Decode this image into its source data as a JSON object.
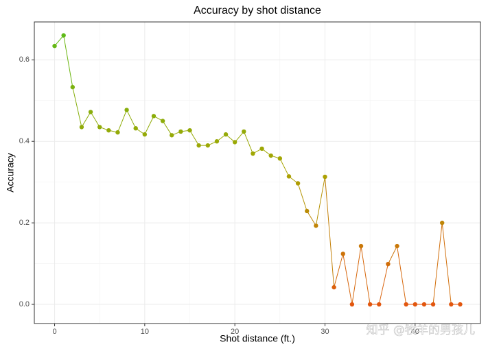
{
  "chart_data": {
    "type": "line",
    "title": "Accuracy by shot distance",
    "xlabel": "Shot distance (ft.)",
    "ylabel": "Accuracy",
    "watermark": "知乎 @牧羊的男孩儿",
    "x": [
      0,
      1,
      2,
      3,
      4,
      5,
      6,
      7,
      8,
      9,
      10,
      11,
      12,
      13,
      14,
      15,
      16,
      17,
      18,
      19,
      20,
      21,
      22,
      23,
      24,
      25,
      26,
      27,
      28,
      29,
      30,
      31,
      32,
      33,
      34,
      35,
      36,
      37,
      38,
      39,
      40,
      41,
      42,
      43,
      44,
      45
    ],
    "values": [
      0.634,
      0.66,
      0.533,
      0.435,
      0.472,
      0.435,
      0.427,
      0.422,
      0.477,
      0.432,
      0.417,
      0.462,
      0.45,
      0.415,
      0.424,
      0.427,
      0.39,
      0.39,
      0.4,
      0.417,
      0.398,
      0.424,
      0.37,
      0.382,
      0.365,
      0.358,
      0.314,
      0.297,
      0.229,
      0.193,
      0.313,
      0.042,
      0.124,
      0,
      0.143,
      0,
      0,
      0.099,
      0.143,
      0,
      0,
      0,
      0,
      0.2,
      0,
      0
    ],
    "color_scale": [
      "#e2560e",
      "#a9a402",
      "#5fba17"
    ],
    "xlim": [
      -2.25,
      47.25
    ],
    "ylim": [
      -0.047,
      0.693
    ],
    "xticks": [
      0,
      10,
      20,
      30,
      40
    ],
    "yticks": [
      {
        "value": 0,
        "label": "0.0"
      },
      0.2,
      0.4,
      0.6
    ],
    "grid": true
  }
}
